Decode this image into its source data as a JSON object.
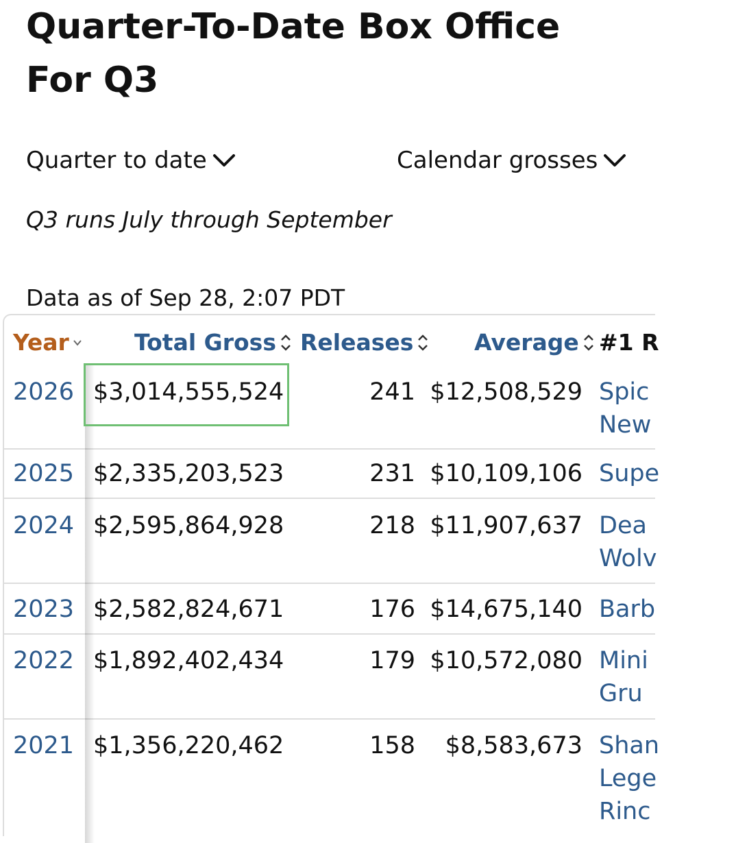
{
  "page": {
    "title": "Quarter-To-Date Box Office For Q3",
    "period_dropdown": "Quarter to date",
    "gross_dropdown": "Calendar grosses",
    "note": "Q3 runs July through September",
    "as_of": "Data as of Sep 28, 2:07 PDT"
  },
  "table": {
    "headers": {
      "year": "Year",
      "total_gross": "Total Gross",
      "releases": "Releases",
      "average": "Average",
      "top_release": "#1 R"
    },
    "rows": [
      {
        "year": "2026",
        "total_gross": "$3,014,555,524",
        "releases": "241",
        "average": "$12,508,529",
        "top_release": [
          "Spic",
          "New"
        ]
      },
      {
        "year": "2025",
        "total_gross": "$2,335,203,523",
        "releases": "231",
        "average": "$10,109,106",
        "top_release": [
          "Supe"
        ]
      },
      {
        "year": "2024",
        "total_gross": "$2,595,864,928",
        "releases": "218",
        "average": "$11,907,637",
        "top_release": [
          "Dea",
          "Wolv"
        ]
      },
      {
        "year": "2023",
        "total_gross": "$2,582,824,671",
        "releases": "176",
        "average": "$14,675,140",
        "top_release": [
          "Barb"
        ]
      },
      {
        "year": "2022",
        "total_gross": "$1,892,402,434",
        "releases": "179",
        "average": "$10,572,080",
        "top_release": [
          "Mini",
          "Gru"
        ]
      },
      {
        "year": "2021",
        "total_gross": "$1,356,220,462",
        "releases": "158",
        "average": "$8,583,673",
        "top_release": [
          "Shan",
          "Lege",
          "Rinc"
        ]
      }
    ]
  },
  "colors": {
    "link": "#2d5a8c",
    "active_sort_header": "#b45e1c",
    "highlight_border": "#6fbf73"
  }
}
